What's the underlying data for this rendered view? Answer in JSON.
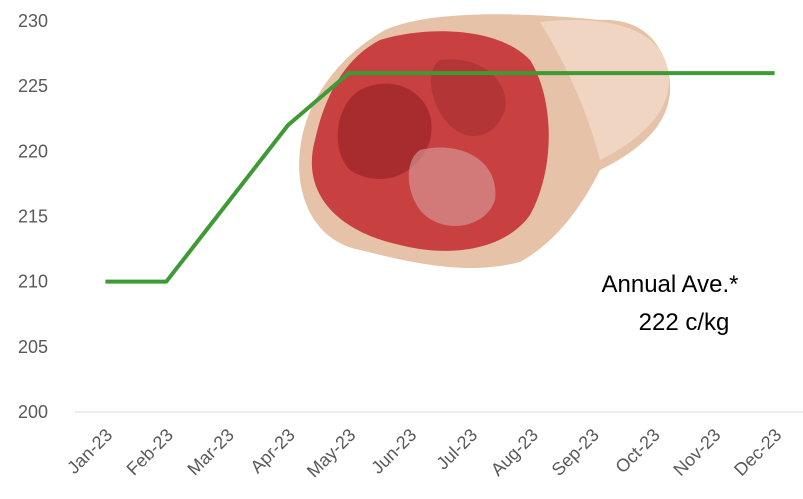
{
  "chart_data": {
    "type": "line",
    "categories": [
      "Jan-23",
      "Feb-23",
      "Mar-23",
      "Apr-23",
      "May-23",
      "Jun-23",
      "Jul-23",
      "Aug-23",
      "Sep-23",
      "Oct-23",
      "Nov-23",
      "Dec-23"
    ],
    "series": [
      {
        "color": "#3e9a32",
        "values": [
          210,
          210,
          216,
          222,
          226,
          226,
          226,
          226,
          226,
          226,
          226,
          226
        ]
      }
    ],
    "ylim": [
      200,
      230
    ],
    "yticks": [
      200,
      205,
      210,
      215,
      220,
      225,
      230
    ],
    "annotations": [
      "Annual Ave.*",
      "222 c/kg"
    ]
  }
}
